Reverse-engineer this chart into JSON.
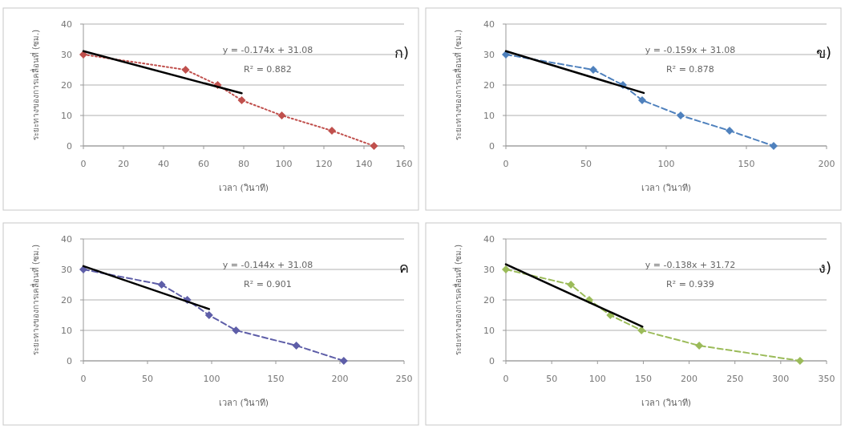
{
  "chart_data": [
    {
      "type": "line",
      "title": "ก)",
      "xlabel": "เวลา (วินาที)",
      "ylabel": "ระยะทางของการเคลื่อนที่ (ซม.)",
      "annotations": [
        "y = -0.174x + 31.08",
        "R² = 0.882"
      ],
      "xlim": [
        0,
        160
      ],
      "ylim": [
        0,
        40
      ],
      "xticks": [
        0,
        20,
        40,
        60,
        80,
        100,
        120,
        140,
        160
      ],
      "yticks": [
        0,
        10,
        20,
        30,
        40
      ],
      "grid": "y",
      "series": [
        {
          "color": "#c0504d",
          "x": [
            0,
            51,
            67,
            79,
            99,
            124,
            145
          ],
          "values": [
            30,
            25,
            20,
            15,
            10,
            5,
            0
          ],
          "marker": "diamond",
          "line_style": "dotted"
        },
        {
          "color": "#000000",
          "x": [
            0,
            79
          ],
          "values": [
            31.1,
            17.3
          ],
          "marker": "none",
          "line_style": "solid"
        }
      ]
    },
    {
      "type": "line",
      "title": "ข)",
      "xlabel": "เวลา (วินาที)",
      "ylabel": "ระยะทางของการเคลื่อนที่ (ซม.)",
      "annotations": [
        "y = -0.159x + 31.08",
        "R² = 0.878"
      ],
      "xlim": [
        0,
        200
      ],
      "ylim": [
        0,
        40
      ],
      "xticks": [
        0,
        50,
        100,
        150,
        200
      ],
      "yticks": [
        0,
        10,
        20,
        30,
        40
      ],
      "grid": "y",
      "series": [
        {
          "color": "#4f81bd",
          "x": [
            0,
            54.5,
            73,
            85,
            109,
            139.5,
            167
          ],
          "values": [
            30,
            25,
            20,
            15,
            10,
            5,
            0
          ],
          "marker": "diamond",
          "line_style": "dashed"
        },
        {
          "color": "#000000",
          "x": [
            0,
            86
          ],
          "values": [
            31.1,
            17.4
          ],
          "marker": "none",
          "line_style": "solid"
        }
      ]
    },
    {
      "type": "line",
      "title": "ค",
      "xlabel": "เวลา (วินาที)",
      "ylabel": "ระยะทางของการเคลื่อนที่ (ซม.)",
      "annotations": [
        "y = -0.144x + 31.08",
        "R² = 0.901"
      ],
      "xlim": [
        0,
        250
      ],
      "ylim": [
        0,
        40
      ],
      "xticks": [
        0,
        50,
        100,
        150,
        200,
        250
      ],
      "yticks": [
        0,
        10,
        20,
        30,
        40
      ],
      "grid": "y",
      "series": [
        {
          "color": "#5e5ea8",
          "x": [
            0,
            61,
            81,
            98,
            119,
            166,
            203
          ],
          "values": [
            30,
            25,
            20,
            15,
            10,
            5,
            0
          ],
          "marker": "diamond",
          "line_style": "dashed"
        },
        {
          "color": "#000000",
          "x": [
            0,
            98
          ],
          "values": [
            31.1,
            17.0
          ],
          "marker": "none",
          "line_style": "solid"
        }
      ]
    },
    {
      "type": "line",
      "title": "ง)",
      "xlabel": "เวลา (วินาที)",
      "ylabel": "ระยะทางของการเคลื่อนที่ (ซม.)",
      "annotations": [
        "y = -0.138x + 31.72",
        "R² = 0.939"
      ],
      "xlim": [
        0,
        350
      ],
      "ylim": [
        0,
        40
      ],
      "xticks": [
        0,
        50,
        100,
        150,
        200,
        250,
        300,
        350
      ],
      "yticks": [
        0,
        10,
        20,
        30,
        40
      ],
      "grid": "y",
      "series": [
        {
          "color": "#9bbb59",
          "x": [
            0,
            71,
            91,
            114,
            148,
            211,
            321
          ],
          "values": [
            30,
            25,
            20,
            15,
            10,
            5,
            0
          ],
          "marker": "diamond",
          "line_style": "dashed"
        },
        {
          "color": "#000000",
          "x": [
            0,
            149
          ],
          "values": [
            31.7,
            11.2
          ],
          "marker": "none",
          "line_style": "solid"
        }
      ]
    }
  ]
}
